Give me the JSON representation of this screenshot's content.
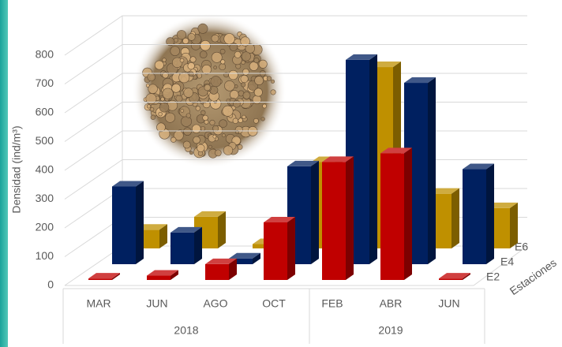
{
  "chart_data": {
    "type": "bar3d",
    "categories": [
      "MAR",
      "JUN",
      "AGO",
      "OCT",
      "FEB",
      "ABR",
      "JUN"
    ],
    "x_groups": [
      "2018",
      "2019"
    ],
    "ylabel": "Densidad (ind/m³)",
    "zlabel": "Estaciones",
    "series": [
      {
        "name": "E2",
        "color": "#c00000",
        "values": [
          5,
          15,
          55,
          200,
          410,
          440,
          5
        ]
      },
      {
        "name": "E4",
        "color": "#002060",
        "values": [
          270,
          110,
          20,
          340,
          710,
          630,
          330
        ]
      },
      {
        "name": "E6",
        "color": "#bf9000",
        "values": [
          65,
          110,
          15,
          300,
          630,
          190,
          140
        ]
      }
    ],
    "ylim": [
      0,
      800
    ],
    "yticks": [
      0,
      100,
      200,
      300,
      400,
      500,
      600,
      700,
      800
    ],
    "grid": true
  }
}
